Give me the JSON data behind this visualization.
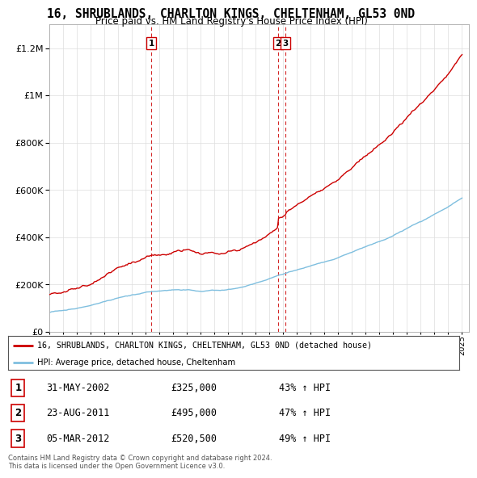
{
  "title": "16, SHRUBLANDS, CHARLTON KINGS, CHELTENHAM, GL53 0ND",
  "subtitle": "Price paid vs. HM Land Registry's House Price Index (HPI)",
  "legend_line1": "16, SHRUBLANDS, CHARLTON KINGS, CHELTENHAM, GL53 0ND (detached house)",
  "legend_line2": "HPI: Average price, detached house, Cheltenham",
  "transactions": [
    {
      "num": 1,
      "date": "31-MAY-2002",
      "price": 325000,
      "pct": "43%",
      "dir": "↑"
    },
    {
      "num": 2,
      "date": "23-AUG-2011",
      "price": 495000,
      "pct": "47%",
      "dir": "↑"
    },
    {
      "num": 3,
      "date": "05-MAR-2012",
      "price": 520500,
      "pct": "49%",
      "dir": "↑"
    }
  ],
  "copyright": "Contains HM Land Registry data © Crown copyright and database right 2024.\nThis data is licensed under the Open Government Licence v3.0.",
  "hpi_color": "#7fbfdf",
  "price_color": "#cc0000",
  "vline_color": "#cc0000",
  "background_color": "#ffffff",
  "ylim": [
    0,
    1300000
  ],
  "yticks": [
    0,
    200000,
    400000,
    600000,
    800000,
    1000000,
    1200000
  ],
  "xlim_start": 1995.0,
  "xlim_end": 2025.5,
  "t1": 2002.41,
  "t2": 2011.64,
  "t3": 2012.17
}
